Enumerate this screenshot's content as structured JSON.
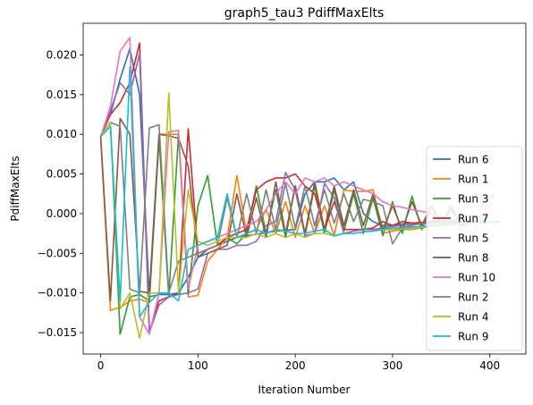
{
  "chart_data": {
    "type": "line",
    "title": "graph5_tau3 PdiffMaxElts",
    "xlabel": "Iteration Number",
    "ylabel": "PdiffMaxElts",
    "xlim": [
      -18,
      437
    ],
    "ylim": [
      -0.0177,
      0.024
    ],
    "xticks": [
      0,
      100,
      200,
      300,
      400
    ],
    "xtick_labels": [
      "0",
      "100",
      "200",
      "300",
      "400"
    ],
    "yticks": [
      -0.015,
      -0.01,
      -0.005,
      0.0,
      0.005,
      0.01,
      0.015,
      0.02
    ],
    "ytick_labels": [
      "−0.015",
      "−0.010",
      "−0.005",
      "0.000",
      "0.005",
      "0.010",
      "0.015",
      "0.020"
    ],
    "grid": false,
    "legend_position": "lower-right",
    "x": [
      0,
      10,
      20,
      30,
      40,
      50,
      60,
      70,
      80,
      90,
      100,
      110,
      120,
      130,
      140,
      150,
      160,
      170,
      180,
      190,
      200,
      210,
      220,
      230,
      240,
      250,
      260,
      270,
      280,
      290,
      300,
      310,
      320,
      330,
      340,
      350,
      360,
      370,
      380,
      390,
      400,
      410
    ],
    "series": [
      {
        "name": "Run 6",
        "color": "#1f77b4",
        "values": [
          0.0098,
          0.0125,
          0.017,
          0.0208,
          0.015,
          -0.0105,
          -0.0102,
          -0.0102,
          -0.01,
          -0.008,
          -0.0055,
          -0.0045,
          -0.004,
          -0.0035,
          -0.003,
          -0.0028,
          -0.0026,
          -0.0024,
          -0.0022,
          -0.0021,
          -0.002,
          0.0025,
          0.004,
          0.004,
          0.0045,
          0.003,
          0.004,
          0.0,
          -0.001,
          -0.0015,
          -0.0015,
          -0.0013,
          -0.0012,
          -0.0012,
          -0.0011,
          -0.0011,
          -0.001,
          -0.001,
          -0.001,
          -0.001,
          -0.001,
          -0.001
        ]
      },
      {
        "name": "Run 1",
        "color": "#ff7f0e",
        "values": [
          0.0096,
          -0.0122,
          -0.0118,
          -0.011,
          -0.0108,
          -0.0112,
          0.01,
          0.01,
          0.01,
          -0.0105,
          -0.0103,
          -0.006,
          -0.0045,
          -0.003,
          0.0048,
          -0.0025,
          -0.002,
          0.0005,
          -0.0025,
          0.0015,
          -0.003,
          0.001,
          -0.0025,
          0.001,
          -0.0028,
          0.003,
          0.0028,
          0.0028,
          0.003,
          -0.0025,
          -0.0022,
          -0.002,
          -0.002,
          -0.0018,
          -0.0016,
          -0.0015,
          -0.0014,
          -0.0013,
          -0.0012,
          -0.0012,
          -0.0011,
          -0.0011
        ]
      },
      {
        "name": "Run 3",
        "color": "#2ca02c",
        "values": [
          0.0097,
          0.0115,
          -0.0152,
          -0.0105,
          -0.0102,
          -0.011,
          0.0095,
          -0.0105,
          0.01,
          -0.0102,
          0.001,
          0.0048,
          -0.004,
          -0.003,
          -0.0038,
          -0.0025,
          0.0035,
          -0.0025,
          0.003,
          -0.003,
          0.0035,
          -0.0028,
          0.0035,
          -0.0025,
          0.003,
          -0.0022,
          0.0025,
          -0.0025,
          0.002,
          -0.0028,
          0.0015,
          -0.0025,
          0.0022,
          -0.002,
          0.001,
          -0.0015,
          0.001,
          -0.0015,
          -0.0012,
          -0.0012,
          -0.0011,
          -0.001
        ]
      },
      {
        "name": "Run 7",
        "color": "#d62728",
        "values": [
          0.0097,
          0.0125,
          0.014,
          0.0165,
          0.0215,
          -0.0148,
          -0.011,
          -0.0105,
          -0.01,
          0.0107,
          -0.005,
          -0.0045,
          -0.004,
          -0.003,
          -0.0025,
          -0.002,
          0.003,
          0.004,
          0.0045,
          0.0045,
          0.005,
          0.0035,
          0.0025,
          -0.002,
          0.0015,
          -0.002,
          -0.002,
          -0.002,
          -0.0018,
          -0.001,
          -0.0015,
          -0.001,
          -0.0012,
          -0.0011,
          -0.001,
          -0.001,
          -0.001,
          -0.001,
          -0.001,
          -0.001,
          -0.001,
          -0.001
        ]
      },
      {
        "name": "Run 5",
        "color": "#9467bd",
        "values": [
          0.0097,
          0.013,
          0.0165,
          0.015,
          0.0202,
          -0.015,
          -0.0115,
          -0.0105,
          -0.0102,
          -0.01,
          -0.0095,
          -0.005,
          -0.0045,
          -0.0045,
          -0.004,
          -0.004,
          -0.0035,
          -0.0015,
          -0.001,
          0.0052,
          0.003,
          -0.0028,
          -0.0025,
          0.0038,
          0.002,
          -0.0025,
          -0.0022,
          -0.002,
          -0.002,
          -0.0018,
          -0.0016,
          -0.0015,
          -0.0014,
          -0.0013,
          -0.0012,
          -0.0012,
          -0.0011,
          -0.0011,
          -0.001,
          -0.001,
          -0.001,
          -0.001
        ]
      },
      {
        "name": "Run 8",
        "color": "#8c564b",
        "values": [
          0.0097,
          -0.011,
          0.012,
          0.01,
          -0.0098,
          -0.01,
          0.01,
          0.0098,
          0.0095,
          0.006,
          -0.0055,
          -0.005,
          -0.0045,
          -0.004,
          0.0025,
          -0.003,
          0.002,
          -0.003,
          0.004,
          -0.0025,
          0.0035,
          -0.0025,
          0.004,
          -0.002,
          0.0035,
          -0.0015,
          0.003,
          -0.0015,
          0.0025,
          -0.002,
          0.001,
          -0.002,
          0.0015,
          -0.0015,
          0.001,
          -0.0012,
          0.0005,
          -0.0012,
          -0.0011,
          -0.001,
          -0.001,
          -0.001
        ]
      },
      {
        "name": "Run 10",
        "color": "#e377c2",
        "values": [
          0.0097,
          0.0135,
          0.0205,
          0.0222,
          -0.013,
          -0.0152,
          -0.01,
          0.0103,
          0.0105,
          -0.0095,
          -0.004,
          -0.0035,
          -0.003,
          -0.0025,
          -0.002,
          -0.0015,
          -0.001,
          0.0005,
          0.0025,
          0.004,
          0.0025,
          0.0045,
          0.004,
          0.0045,
          0.0035,
          0.004,
          0.0035,
          0.003,
          0.0025,
          0.0015,
          0.001,
          0.0008,
          0.0005,
          0.0003,
          0.0,
          -0.0005,
          -0.0008,
          -0.001,
          -0.001,
          -0.001,
          -0.001,
          -0.001
        ]
      },
      {
        "name": "Run 2",
        "color": "#7f7f7f",
        "values": [
          0.0097,
          0.0115,
          0.011,
          -0.0095,
          -0.01,
          0.0108,
          0.0112,
          -0.01,
          -0.006,
          -0.0055,
          -0.005,
          -0.0045,
          -0.004,
          0.002,
          -0.003,
          0.0025,
          -0.0025,
          0.003,
          -0.002,
          0.0038,
          -0.0018,
          0.0035,
          -0.0015,
          0.003,
          -0.0012,
          0.0025,
          -0.001,
          0.0018,
          0.0015,
          0.001,
          -0.0038,
          -0.0018,
          -0.0015,
          -0.0012,
          -0.0011,
          -0.0011,
          -0.001,
          -0.001,
          -0.001,
          -0.001,
          -0.001,
          -0.001
        ]
      },
      {
        "name": "Run 4",
        "color": "#bcbd22",
        "values": [
          0.0097,
          0.0115,
          -0.012,
          -0.01,
          -0.0157,
          -0.01,
          -0.01,
          0.0152,
          -0.01,
          0.003,
          -0.0035,
          -0.004,
          -0.0035,
          -0.003,
          -0.003,
          -0.003,
          -0.0025,
          -0.003,
          -0.0025,
          -0.003,
          -0.0025,
          -0.003,
          -0.0025,
          -0.0025,
          -0.0028,
          -0.0025,
          -0.0025,
          -0.0023,
          -0.0022,
          -0.002,
          -0.002,
          -0.0019,
          -0.0018,
          -0.0017,
          -0.0016,
          -0.0015,
          -0.0014,
          -0.0013,
          -0.0012,
          -0.0012,
          -0.0011,
          -0.0011
        ]
      },
      {
        "name": "Run 9",
        "color": "#17becf",
        "values": [
          0.0097,
          0.011,
          -0.011,
          0.0185,
          -0.013,
          -0.0112,
          -0.01,
          -0.01,
          -0.011,
          -0.0045,
          -0.004,
          -0.0035,
          -0.003,
          0.0025,
          -0.003,
          -0.0025,
          -0.002,
          -0.0025,
          -0.002,
          -0.0022,
          -0.0025,
          -0.0025,
          -0.0022,
          -0.002,
          -0.0028,
          -0.0025,
          -0.0025,
          -0.0023,
          -0.0022,
          -0.002,
          -0.0018,
          -0.0018,
          -0.0017,
          -0.0016,
          -0.0015,
          -0.0014,
          -0.0013,
          -0.0012,
          -0.0012,
          -0.0011,
          -0.0011,
          -0.0011
        ]
      }
    ]
  }
}
